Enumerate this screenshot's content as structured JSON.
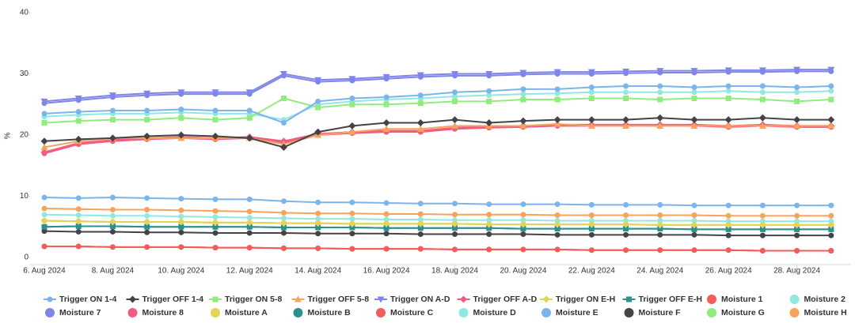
{
  "chart_data": {
    "type": "line",
    "ylabel": "%",
    "ylim": [
      0,
      40
    ],
    "yticks": [
      0,
      10,
      20,
      30,
      40
    ],
    "xlim": [
      "2024-08-05T14:00",
      "2024-08-29T14:00"
    ],
    "xticks": [
      {
        "value": "2024-08-06",
        "label": "6. Aug 2024"
      },
      {
        "value": "2024-08-08",
        "label": "8. Aug 2024"
      },
      {
        "value": "2024-08-10",
        "label": "10. Aug 2024"
      },
      {
        "value": "2024-08-12",
        "label": "12. Aug 2024"
      },
      {
        "value": "2024-08-14",
        "label": "14. Aug 2024"
      },
      {
        "value": "2024-08-16",
        "label": "16. Aug 2024"
      },
      {
        "value": "2024-08-18",
        "label": "18. Aug 2024"
      },
      {
        "value": "2024-08-20",
        "label": "20. Aug 2024"
      },
      {
        "value": "2024-08-22",
        "label": "22. Aug 2024"
      },
      {
        "value": "2024-08-24",
        "label": "24. Aug 2024"
      },
      {
        "value": "2024-08-26",
        "label": "26. Aug 2024"
      },
      {
        "value": "2024-08-28",
        "label": "28. Aug 2024"
      }
    ],
    "x": [
      "2024-08-06",
      "2024-08-07",
      "2024-08-08",
      "2024-08-09",
      "2024-08-10",
      "2024-08-11",
      "2024-08-12",
      "2024-08-13",
      "2024-08-14",
      "2024-08-15",
      "2024-08-16",
      "2024-08-17",
      "2024-08-18",
      "2024-08-19",
      "2024-08-20",
      "2024-08-21",
      "2024-08-22",
      "2024-08-23",
      "2024-08-24",
      "2024-08-25",
      "2024-08-26",
      "2024-08-27",
      "2024-08-28",
      "2024-08-29"
    ],
    "series": [
      {
        "name": "Trigger ON 1-4",
        "color": "#7cb5ec",
        "marker": "circle",
        "values": [
          23.5,
          23.8,
          24,
          24,
          24.2,
          24,
          24,
          22,
          25.5,
          26,
          26.2,
          26.5,
          27,
          27.2,
          27.5,
          27.5,
          27.8,
          28,
          28,
          27.8,
          28,
          28,
          27.8,
          28
        ]
      },
      {
        "name": "Trigger OFF 1-4",
        "color": "#434348",
        "marker": "diamond",
        "values": [
          19,
          19.3,
          19.5,
          19.8,
          20,
          19.8,
          19.5,
          18,
          20.5,
          21.5,
          22,
          22,
          22.5,
          22,
          22.3,
          22.5,
          22.5,
          22.5,
          22.8,
          22.5,
          22.5,
          22.8,
          22.5,
          22.5
        ]
      },
      {
        "name": "Trigger ON 5-8",
        "color": "#90ed7d",
        "marker": "square",
        "values": [
          22,
          22.3,
          22.5,
          22.5,
          22.8,
          22.5,
          22.8,
          26,
          24.5,
          25,
          25,
          25.2,
          25.5,
          25.5,
          25.8,
          25.8,
          26,
          26,
          25.8,
          26,
          26,
          25.8,
          25.5,
          25.8
        ]
      },
      {
        "name": "Trigger OFF 5-8",
        "color": "#f7a35c",
        "marker": "triangle",
        "values": [
          18,
          19,
          19.5,
          19.5,
          19.5,
          19.5,
          19.5,
          18.5,
          20,
          20.5,
          21,
          21,
          21.5,
          21.5,
          21.5,
          21.8,
          21.5,
          21.5,
          21.5,
          21.5,
          21.5,
          21.5,
          21.5,
          21.5
        ]
      },
      {
        "name": "Trigger ON A-D",
        "color": "#8085e9",
        "marker": "triangle-down",
        "values": [
          25.5,
          26,
          26.5,
          26.8,
          27,
          27,
          27,
          30,
          29,
          29.2,
          29.5,
          29.8,
          30,
          30,
          30.2,
          30.3,
          30.3,
          30.4,
          30.5,
          30.5,
          30.6,
          30.6,
          30.7,
          30.7
        ]
      },
      {
        "name": "Trigger OFF A-D",
        "color": "#f15c80",
        "marker": "diamond",
        "values": [
          17.2,
          18.7,
          19.2,
          19.5,
          19.7,
          19.5,
          19.7,
          19,
          20.2,
          20.5,
          20.7,
          20.7,
          21.2,
          21.4,
          21.5,
          21.7,
          21.7,
          21.7,
          21.7,
          21.7,
          21.5,
          21.7,
          21.5,
          21.5
        ]
      },
      {
        "name": "Trigger ON E-H",
        "color": "#e4d354",
        "marker": "diamond",
        "values": [
          6,
          5.9,
          5.8,
          5.8,
          5.8,
          5.7,
          5.7,
          5.6,
          5.6,
          5.5,
          5.5,
          5.5,
          5.5,
          5.4,
          5.4,
          5.4,
          5.4,
          5.4,
          5.3,
          5.3,
          5.3,
          5.3,
          5.3,
          5.3
        ]
      },
      {
        "name": "Trigger OFF E-H",
        "color": "#2b908f",
        "marker": "square",
        "values": [
          5,
          5.1,
          5.1,
          5,
          5,
          5,
          5,
          4.9,
          4.9,
          4.9,
          4.8,
          4.8,
          4.8,
          4.8,
          4.7,
          4.7,
          4.7,
          4.7,
          4.7,
          4.6,
          4.6,
          4.6,
          4.6,
          4.6
        ]
      },
      {
        "name": "Moisture 1",
        "color": "#f45b5b",
        "marker": "circle",
        "values": [
          1.8,
          1.8,
          1.7,
          1.7,
          1.7,
          1.6,
          1.6,
          1.5,
          1.5,
          1.4,
          1.4,
          1.4,
          1.3,
          1.3,
          1.3,
          1.3,
          1.2,
          1.2,
          1.2,
          1.2,
          1.2,
          1.1,
          1.1,
          1.1
        ]
      },
      {
        "name": "Moisture 2",
        "color": "#91e8e1",
        "marker": "circle",
        "values": [
          23,
          23.3,
          23.5,
          23.5,
          23.7,
          23.5,
          23.5,
          22.5,
          25,
          25.5,
          25.8,
          26,
          26.3,
          26.5,
          26.7,
          26.8,
          27,
          27,
          27,
          27,
          27.2,
          27,
          27,
          27.2
        ]
      },
      {
        "name": "Moisture 7",
        "color": "#8085e9",
        "marker": "circle",
        "values": [
          25.2,
          25.7,
          26.2,
          26.5,
          26.7,
          26.7,
          26.7,
          29.7,
          28.7,
          28.9,
          29.2,
          29.5,
          29.7,
          29.7,
          29.9,
          30,
          30,
          30.1,
          30.2,
          30.2,
          30.3,
          30.3,
          30.4,
          30.4
        ]
      },
      {
        "name": "Moisture 8",
        "color": "#f15c80",
        "marker": "circle",
        "values": [
          17,
          18.5,
          19,
          19.3,
          19.5,
          19.3,
          19.5,
          18.8,
          20,
          20.3,
          20.5,
          20.5,
          21,
          21.2,
          21.3,
          21.5,
          21.5,
          21.5,
          21.5,
          21.5,
          21.3,
          21.5,
          21.3,
          21.3
        ]
      },
      {
        "name": "Moisture A",
        "color": "#e4d354",
        "marker": "circle",
        "values": [
          6,
          5.9,
          5.8,
          5.8,
          5.8,
          5.7,
          5.7,
          5.6,
          5.6,
          5.5,
          5.5,
          5.5,
          5.5,
          5.4,
          5.4,
          5.4,
          5.4,
          5.4,
          5.3,
          5.3,
          5.3,
          5.3,
          5.3,
          5.3
        ]
      },
      {
        "name": "Moisture B",
        "color": "#2b908f",
        "marker": "circle",
        "values": [
          5,
          5.1,
          5.1,
          5,
          5,
          5,
          5,
          4.9,
          4.9,
          4.9,
          4.8,
          4.8,
          4.8,
          4.8,
          4.7,
          4.7,
          4.7,
          4.7,
          4.7,
          4.6,
          4.6,
          4.6,
          4.6,
          4.6
        ]
      },
      {
        "name": "Moisture C",
        "color": "#f45b5b",
        "marker": "circle",
        "values": [
          1.8,
          1.8,
          1.7,
          1.7,
          1.7,
          1.6,
          1.6,
          1.5,
          1.5,
          1.4,
          1.4,
          1.4,
          1.3,
          1.3,
          1.3,
          1.3,
          1.2,
          1.2,
          1.2,
          1.2,
          1.2,
          1.1,
          1.1,
          1.1
        ]
      },
      {
        "name": "Moisture D",
        "color": "#91e8e1",
        "marker": "circle",
        "values": [
          7,
          6.9,
          6.8,
          6.8,
          6.7,
          6.6,
          6.5,
          6.4,
          6.3,
          6.3,
          6.2,
          6.2,
          6.1,
          6.1,
          6.1,
          6,
          6,
          6,
          6,
          6,
          5.9,
          5.9,
          5.9,
          5.9
        ]
      },
      {
        "name": "Moisture E",
        "color": "#7cb5ec",
        "marker": "circle",
        "values": [
          9.8,
          9.7,
          9.8,
          9.7,
          9.6,
          9.5,
          9.5,
          9.2,
          9,
          9,
          8.9,
          8.8,
          8.8,
          8.7,
          8.7,
          8.7,
          8.6,
          8.6,
          8.6,
          8.5,
          8.5,
          8.5,
          8.5,
          8.5
        ]
      },
      {
        "name": "Moisture F",
        "color": "#434348",
        "marker": "circle",
        "values": [
          4.3,
          4.2,
          4.2,
          4.1,
          4.1,
          4,
          4,
          4,
          3.9,
          3.9,
          3.9,
          3.8,
          3.8,
          3.8,
          3.8,
          3.7,
          3.7,
          3.7,
          3.7,
          3.7,
          3.6,
          3.6,
          3.6,
          3.6
        ]
      },
      {
        "name": "Moisture G",
        "color": "#90ed7d",
        "marker": "circle",
        "values": [
          6,
          5.9,
          5.8,
          5.8,
          5.8,
          5.7,
          5.7,
          5.6,
          5.6,
          5.5,
          5.5,
          5.5,
          5.5,
          5.4,
          5.4,
          5.4,
          5.4,
          5.4,
          5.3,
          5.3,
          5.3,
          5.3,
          5.3,
          5.3
        ]
      },
      {
        "name": "Moisture H",
        "color": "#f7a35c",
        "marker": "circle",
        "values": [
          8,
          7.9,
          7.8,
          7.8,
          7.7,
          7.6,
          7.5,
          7.3,
          7.2,
          7.2,
          7.1,
          7.1,
          7,
          7,
          7,
          6.9,
          6.9,
          6.9,
          6.9,
          6.9,
          6.8,
          6.8,
          6.8,
          6.8
        ]
      }
    ]
  }
}
